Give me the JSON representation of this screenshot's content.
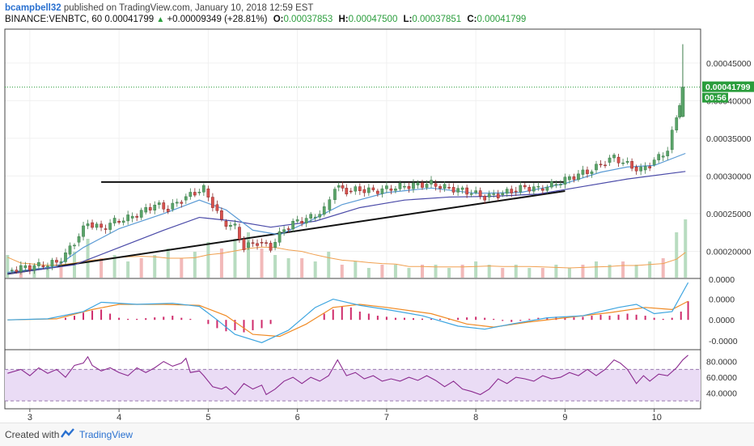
{
  "header": {
    "user": "bcampbell32",
    "published": "published on TradingView.com, January 10, 2018 12:59 EST",
    "symbol": "BINANCE:VENBTC, 60",
    "last": "0.00041799",
    "change": "+0.00009349 (+28.81%)",
    "o_label": "O:",
    "o_value": "0.00037853",
    "h_label": "H:",
    "h_value": "0.00047500",
    "l_label": "L:",
    "l_value": "0.00037851",
    "c_label": "C:",
    "c_value": "0.00041799"
  },
  "footer": {
    "created": "Created with",
    "brand": "TradingView"
  },
  "colors": {
    "up": "#5aa469",
    "down": "#d9534f",
    "ma_fast": "#5b9bd5",
    "ma_slow": "#4a4aa8",
    "macd": "#3da5e0",
    "signal": "#f08a24",
    "hist": "#cf2b6b",
    "rsi": "#8b2a8f",
    "rsi_band": "#eadcf5",
    "price_line": "#2a9d3c"
  },
  "chart_data": [
    {
      "type": "candlestick",
      "title": "",
      "x_ticks": [
        "3",
        "4",
        "5",
        "6",
        "7",
        "8",
        "9",
        "10"
      ],
      "y_ticks": [
        "0.00045000",
        "0.00040000",
        "0.00035000",
        "0.00030000",
        "0.00025000",
        "0.00020000"
      ],
      "ylim": [
        0.000165,
        0.000495
      ],
      "last_price_label": "0.00041799",
      "countdown_label": "00:56",
      "close_points": [
        [
          2.75,
          0.000175
        ],
        [
          2.9,
          0.000178
        ],
        [
          3.1,
          0.000181
        ],
        [
          3.3,
          0.000185
        ],
        [
          3.4,
          0.000196
        ],
        [
          3.5,
          0.000212
        ],
        [
          3.65,
          0.000238
        ],
        [
          3.8,
          0.00023
        ],
        [
          3.95,
          0.00024
        ],
        [
          4.1,
          0.000244
        ],
        [
          4.25,
          0.000252
        ],
        [
          4.4,
          0.000262
        ],
        [
          4.55,
          0.000256
        ],
        [
          4.7,
          0.000268
        ],
        [
          4.85,
          0.000278
        ],
        [
          4.95,
          0.000283
        ],
        [
          5.05,
          0.000262
        ],
        [
          5.15,
          0.00024
        ],
        [
          5.3,
          0.000232
        ],
        [
          5.4,
          0.000205
        ],
        [
          5.55,
          0.000212
        ],
        [
          5.7,
          0.000205
        ],
        [
          5.85,
          0.00023
        ],
        [
          6.0,
          0.00024
        ],
        [
          6.15,
          0.000245
        ],
        [
          6.3,
          0.000255
        ],
        [
          6.42,
          0.000285
        ],
        [
          6.55,
          0.00028
        ],
        [
          6.7,
          0.000282
        ],
        [
          6.85,
          0.00028
        ],
        [
          7.0,
          0.000283
        ],
        [
          7.15,
          0.000286
        ],
        [
          7.3,
          0.000288
        ],
        [
          7.5,
          0.00029
        ],
        [
          7.65,
          0.000285
        ],
        [
          7.8,
          0.000282
        ],
        [
          7.95,
          0.000278
        ],
        [
          8.1,
          0.000272
        ],
        [
          8.25,
          0.000275
        ],
        [
          8.4,
          0.00028
        ],
        [
          8.55,
          0.000285
        ],
        [
          8.7,
          0.000283
        ],
        [
          8.85,
          0.000288
        ],
        [
          9.0,
          0.000295
        ],
        [
          9.15,
          0.000302
        ],
        [
          9.3,
          0.000308
        ],
        [
          9.45,
          0.000318
        ],
        [
          9.55,
          0.000325
        ],
        [
          9.65,
          0.000318
        ],
        [
          9.75,
          0.000312
        ],
        [
          9.85,
          0.000308
        ],
        [
          9.95,
          0.000315
        ],
        [
          10.05,
          0.000325
        ],
        [
          10.15,
          0.000335
        ],
        [
          10.25,
          0.000378
        ],
        [
          10.32,
          0.000418
        ]
      ],
      "wick_high_last": 0.000475,
      "ma_fast_points": [
        [
          2.75,
          0.000172
        ],
        [
          3.3,
          0.00018
        ],
        [
          3.6,
          0.000205
        ],
        [
          4.0,
          0.00023
        ],
        [
          4.5,
          0.00025
        ],
        [
          4.9,
          0.000268
        ],
        [
          5.2,
          0.000255
        ],
        [
          5.5,
          0.000228
        ],
        [
          5.8,
          0.000222
        ],
        [
          6.1,
          0.000238
        ],
        [
          6.5,
          0.000262
        ],
        [
          7.0,
          0.000278
        ],
        [
          7.5,
          0.000284
        ],
        [
          8.0,
          0.000277
        ],
        [
          8.5,
          0.000278
        ],
        [
          9.0,
          0.00029
        ],
        [
          9.4,
          0.000305
        ],
        [
          9.7,
          0.000312
        ],
        [
          10.0,
          0.000314
        ],
        [
          10.35,
          0.00033
        ]
      ],
      "ma_slow_points": [
        [
          2.75,
          0.00017
        ],
        [
          3.5,
          0.000182
        ],
        [
          4.0,
          0.000205
        ],
        [
          4.5,
          0.000228
        ],
        [
          4.9,
          0.000245
        ],
        [
          5.3,
          0.00024
        ],
        [
          5.7,
          0.000232
        ],
        [
          6.2,
          0.00024
        ],
        [
          6.7,
          0.000258
        ],
        [
          7.2,
          0.000268
        ],
        [
          7.7,
          0.000272
        ],
        [
          8.2,
          0.000273
        ],
        [
          8.7,
          0.000276
        ],
        [
          9.2,
          0.000286
        ],
        [
          9.7,
          0.000296
        ],
        [
          10.35,
          0.000306
        ]
      ],
      "ascending_trendline": [
        [
          2.75,
          0.00017
        ],
        [
          9.0,
          0.00028
        ]
      ],
      "resistance_line": [
        [
          3.8,
          0.000292
        ],
        [
          9.0,
          0.000292
        ]
      ]
    },
    {
      "type": "bar",
      "name": "Volume",
      "x": [
        2.75,
        2.9,
        3.05,
        3.2,
        3.35,
        3.5,
        3.65,
        3.8,
        3.95,
        4.1,
        4.25,
        4.4,
        4.55,
        4.7,
        4.85,
        5.0,
        5.15,
        5.3,
        5.45,
        5.6,
        5.75,
        5.9,
        6.05,
        6.2,
        6.35,
        6.5,
        6.65,
        6.8,
        6.95,
        7.1,
        7.25,
        7.4,
        7.55,
        7.7,
        7.85,
        8.0,
        8.15,
        8.3,
        8.45,
        8.6,
        8.75,
        8.9,
        9.05,
        9.2,
        9.35,
        9.5,
        9.65,
        9.8,
        9.95,
        10.1,
        10.25,
        10.35
      ],
      "values": [
        0.35,
        0.15,
        0.2,
        0.15,
        0.25,
        0.4,
        0.6,
        0.3,
        0.35,
        0.25,
        0.3,
        0.35,
        0.45,
        0.3,
        0.4,
        0.55,
        0.45,
        0.6,
        0.7,
        0.45,
        0.35,
        0.3,
        0.3,
        0.25,
        0.4,
        0.2,
        0.25,
        0.15,
        0.2,
        0.2,
        0.15,
        0.2,
        0.2,
        0.15,
        0.2,
        0.25,
        0.2,
        0.15,
        0.2,
        0.15,
        0.15,
        0.2,
        0.15,
        0.2,
        0.25,
        0.2,
        0.25,
        0.2,
        0.25,
        0.3,
        0.7,
        0.9
      ]
    },
    {
      "type": "line",
      "name": "MACD",
      "y_ticks": [
        "0.0000",
        "0.0000",
        "0.0000",
        "-0.0000"
      ],
      "macd_points": [
        [
          2.75,
          0.0
        ],
        [
          3.2,
          0.05
        ],
        [
          3.6,
          0.4
        ],
        [
          3.8,
          0.85
        ],
        [
          4.2,
          0.75
        ],
        [
          4.6,
          0.8
        ],
        [
          4.9,
          0.65
        ],
        [
          5.1,
          0.0
        ],
        [
          5.3,
          -0.7
        ],
        [
          5.6,
          -1.1
        ],
        [
          5.9,
          -0.5
        ],
        [
          6.2,
          0.6
        ],
        [
          6.4,
          1.0
        ],
        [
          6.7,
          0.7
        ],
        [
          7.0,
          0.5
        ],
        [
          7.4,
          0.2
        ],
        [
          7.8,
          -0.3
        ],
        [
          8.1,
          -0.45
        ],
        [
          8.4,
          -0.2
        ],
        [
          8.8,
          0.1
        ],
        [
          9.2,
          0.2
        ],
        [
          9.6,
          0.6
        ],
        [
          9.8,
          0.75
        ],
        [
          10.0,
          0.3
        ],
        [
          10.2,
          0.4
        ],
        [
          10.38,
          1.8
        ]
      ],
      "signal_points": [
        [
          2.75,
          0.0
        ],
        [
          3.3,
          0.05
        ],
        [
          3.7,
          0.5
        ],
        [
          4.0,
          0.75
        ],
        [
          4.5,
          0.75
        ],
        [
          4.9,
          0.7
        ],
        [
          5.2,
          0.2
        ],
        [
          5.5,
          -0.7
        ],
        [
          5.8,
          -0.8
        ],
        [
          6.1,
          -0.2
        ],
        [
          6.4,
          0.6
        ],
        [
          6.7,
          0.75
        ],
        [
          7.0,
          0.6
        ],
        [
          7.5,
          0.3
        ],
        [
          7.9,
          -0.2
        ],
        [
          8.2,
          -0.35
        ],
        [
          8.6,
          -0.1
        ],
        [
          9.0,
          0.1
        ],
        [
          9.5,
          0.35
        ],
        [
          9.9,
          0.6
        ],
        [
          10.2,
          0.5
        ],
        [
          10.38,
          0.9
        ]
      ],
      "histogram_x": [
        3.4,
        3.5,
        3.6,
        3.7,
        3.8,
        3.9,
        4.0,
        4.1,
        4.2,
        4.3,
        4.4,
        4.5,
        4.6,
        4.7,
        4.8,
        5.0,
        5.1,
        5.2,
        5.3,
        5.4,
        5.5,
        5.6,
        5.7,
        6.3,
        6.4,
        6.5,
        6.6,
        6.7,
        6.8,
        6.9,
        7.0,
        7.1,
        7.2,
        7.3,
        7.4,
        7.5,
        7.6,
        7.7,
        7.8,
        7.9,
        8.0,
        8.1,
        8.2,
        8.3,
        8.4,
        8.5,
        8.6,
        8.7,
        8.8,
        8.9,
        9.0,
        9.1,
        9.2,
        9.3,
        9.4,
        9.5,
        9.6,
        9.7,
        9.8,
        9.9,
        10.0,
        10.1,
        10.2,
        10.3,
        10.38
      ],
      "histogram_values": [
        0.1,
        0.2,
        0.35,
        0.45,
        0.5,
        0.3,
        0.1,
        0.05,
        0.05,
        0.08,
        0.12,
        0.15,
        0.2,
        0.1,
        0.05,
        -0.2,
        -0.4,
        -0.55,
        -0.5,
        -0.6,
        -0.5,
        -0.4,
        -0.2,
        0.3,
        0.5,
        0.65,
        0.6,
        0.4,
        0.3,
        0.2,
        0.15,
        0.1,
        0.1,
        0.08,
        0.06,
        0.05,
        0.05,
        0.05,
        0.1,
        0.12,
        0.15,
        0.1,
        0.05,
        -0.05,
        -0.1,
        -0.05,
        0.05,
        0.1,
        0.12,
        0.15,
        0.1,
        0.12,
        0.15,
        0.2,
        0.25,
        0.2,
        0.25,
        0.3,
        0.25,
        0.2,
        0.1,
        0.05,
        0.1,
        0.4,
        0.9
      ]
    },
    {
      "type": "line",
      "name": "RSI",
      "y_ticks": [
        "80.0000",
        "60.0000",
        "40.0000"
      ],
      "band": [
        30,
        70
      ],
      "rsi_points": [
        [
          2.75,
          65
        ],
        [
          2.9,
          70
        ],
        [
          3.0,
          62
        ],
        [
          3.1,
          72
        ],
        [
          3.2,
          65
        ],
        [
          3.3,
          70
        ],
        [
          3.4,
          60
        ],
        [
          3.5,
          75
        ],
        [
          3.6,
          78
        ],
        [
          3.65,
          86
        ],
        [
          3.7,
          75
        ],
        [
          3.8,
          68
        ],
        [
          3.9,
          72
        ],
        [
          4.0,
          66
        ],
        [
          4.1,
          62
        ],
        [
          4.2,
          72
        ],
        [
          4.3,
          66
        ],
        [
          4.4,
          72
        ],
        [
          4.5,
          80
        ],
        [
          4.6,
          74
        ],
        [
          4.7,
          78
        ],
        [
          4.75,
          84
        ],
        [
          4.8,
          66
        ],
        [
          4.9,
          68
        ],
        [
          4.95,
          62
        ],
        [
          5.05,
          48
        ],
        [
          5.15,
          45
        ],
        [
          5.2,
          48
        ],
        [
          5.3,
          38
        ],
        [
          5.4,
          52
        ],
        [
          5.5,
          45
        ],
        [
          5.6,
          50
        ],
        [
          5.65,
          38
        ],
        [
          5.75,
          45
        ],
        [
          5.85,
          55
        ],
        [
          5.95,
          60
        ],
        [
          6.05,
          52
        ],
        [
          6.15,
          60
        ],
        [
          6.25,
          55
        ],
        [
          6.35,
          62
        ],
        [
          6.45,
          82
        ],
        [
          6.55,
          62
        ],
        [
          6.65,
          66
        ],
        [
          6.75,
          58
        ],
        [
          6.85,
          62
        ],
        [
          6.95,
          55
        ],
        [
          7.05,
          58
        ],
        [
          7.15,
          55
        ],
        [
          7.25,
          60
        ],
        [
          7.35,
          56
        ],
        [
          7.45,
          62
        ],
        [
          7.55,
          56
        ],
        [
          7.65,
          48
        ],
        [
          7.75,
          55
        ],
        [
          7.85,
          45
        ],
        [
          7.95,
          42
        ],
        [
          8.05,
          38
        ],
        [
          8.15,
          45
        ],
        [
          8.25,
          58
        ],
        [
          8.35,
          52
        ],
        [
          8.45,
          60
        ],
        [
          8.55,
          58
        ],
        [
          8.65,
          55
        ],
        [
          8.75,
          62
        ],
        [
          8.85,
          58
        ],
        [
          8.95,
          60
        ],
        [
          9.05,
          66
        ],
        [
          9.15,
          62
        ],
        [
          9.25,
          70
        ],
        [
          9.35,
          62
        ],
        [
          9.45,
          70
        ],
        [
          9.55,
          82
        ],
        [
          9.62,
          78
        ],
        [
          9.7,
          70
        ],
        [
          9.8,
          52
        ],
        [
          9.88,
          62
        ],
        [
          9.95,
          55
        ],
        [
          10.05,
          64
        ],
        [
          10.15,
          62
        ],
        [
          10.25,
          72
        ],
        [
          10.32,
          82
        ],
        [
          10.38,
          88
        ]
      ]
    }
  ]
}
